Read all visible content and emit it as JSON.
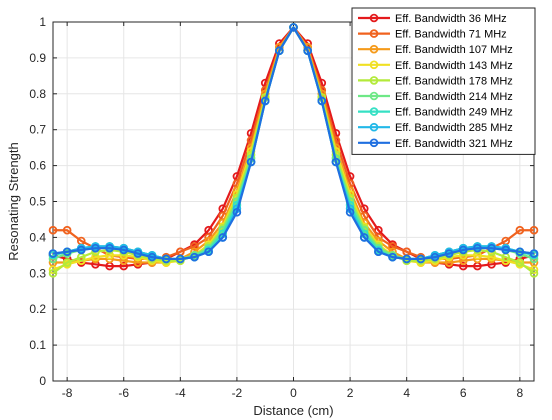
{
  "chart_data": {
    "type": "line",
    "xlabel": "Distance (cm)",
    "ylabel": "Resonating Strength",
    "xlim": [
      -8.5,
      8.5
    ],
    "ylim": [
      0,
      1
    ],
    "xticks": [
      -8,
      -6,
      -4,
      -2,
      0,
      2,
      4,
      6,
      8
    ],
    "yticks": [
      0,
      0.1,
      0.2,
      0.3,
      0.4,
      0.5,
      0.6,
      0.7,
      0.8,
      0.9,
      1
    ],
    "xtick_labels": [
      "-8",
      "-6",
      "-4",
      "-2",
      "0",
      "2",
      "4",
      "6",
      "8"
    ],
    "ytick_labels": [
      "0",
      "0.1",
      "0.2",
      "0.3",
      "0.4",
      "0.5",
      "0.6",
      "0.7",
      "0.8",
      "0.9",
      "1"
    ],
    "grid": true,
    "legend_position": "top-right",
    "x": [
      -8.5,
      -8,
      -7.5,
      -7,
      -6.5,
      -6,
      -5.5,
      -5,
      -4.5,
      -4,
      -3.5,
      -3,
      -2.5,
      -2,
      -1.5,
      -1,
      -0.5,
      0,
      0.5,
      1,
      1.5,
      2,
      2.5,
      3,
      3.5,
      4,
      4.5,
      5,
      5.5,
      6,
      6.5,
      7,
      7.5,
      8,
      8.5
    ],
    "series": [
      {
        "name": "Eff. Bandwidth 36 MHz",
        "color": "#e41a1c",
        "values": [
          0.35,
          0.34,
          0.33,
          0.325,
          0.32,
          0.32,
          0.325,
          0.33,
          0.34,
          0.36,
          0.38,
          0.42,
          0.48,
          0.57,
          0.69,
          0.83,
          0.94,
          0.985,
          0.94,
          0.83,
          0.69,
          0.57,
          0.48,
          0.42,
          0.38,
          0.36,
          0.34,
          0.33,
          0.325,
          0.32,
          0.32,
          0.325,
          0.33,
          0.34,
          0.35
        ]
      },
      {
        "name": "Eff. Bandwidth 71 MHz",
        "color": "#f0621e",
        "values": [
          0.42,
          0.42,
          0.39,
          0.37,
          0.35,
          0.345,
          0.34,
          0.34,
          0.345,
          0.36,
          0.375,
          0.4,
          0.46,
          0.55,
          0.67,
          0.81,
          0.93,
          0.985,
          0.93,
          0.81,
          0.67,
          0.55,
          0.46,
          0.4,
          0.375,
          0.36,
          0.345,
          0.34,
          0.34,
          0.345,
          0.35,
          0.37,
          0.39,
          0.42,
          0.42
        ]
      },
      {
        "name": "Eff. Bandwidth 107 MHz",
        "color": "#f59a1a",
        "values": [
          0.33,
          0.33,
          0.335,
          0.34,
          0.34,
          0.335,
          0.33,
          0.33,
          0.33,
          0.34,
          0.36,
          0.39,
          0.44,
          0.53,
          0.65,
          0.8,
          0.93,
          0.985,
          0.93,
          0.8,
          0.65,
          0.53,
          0.44,
          0.39,
          0.36,
          0.34,
          0.33,
          0.33,
          0.33,
          0.335,
          0.34,
          0.34,
          0.335,
          0.33,
          0.33
        ]
      },
      {
        "name": "Eff. Bandwidth 143 MHz",
        "color": "#f0e023",
        "values": [
          0.31,
          0.325,
          0.335,
          0.345,
          0.35,
          0.35,
          0.345,
          0.335,
          0.33,
          0.335,
          0.35,
          0.38,
          0.43,
          0.52,
          0.64,
          0.79,
          0.92,
          0.985,
          0.92,
          0.79,
          0.64,
          0.52,
          0.43,
          0.38,
          0.35,
          0.335,
          0.33,
          0.335,
          0.345,
          0.35,
          0.35,
          0.345,
          0.335,
          0.325,
          0.31
        ]
      },
      {
        "name": "Eff. Bandwidth 178 MHz",
        "color": "#b3ea3a",
        "values": [
          0.3,
          0.33,
          0.345,
          0.36,
          0.365,
          0.36,
          0.35,
          0.34,
          0.335,
          0.335,
          0.35,
          0.375,
          0.425,
          0.51,
          0.63,
          0.79,
          0.92,
          0.985,
          0.92,
          0.79,
          0.63,
          0.51,
          0.425,
          0.375,
          0.35,
          0.335,
          0.335,
          0.34,
          0.35,
          0.36,
          0.365,
          0.36,
          0.345,
          0.33,
          0.3
        ]
      },
      {
        "name": "Eff. Bandwidth 214 MHz",
        "color": "#6ee886",
        "values": [
          0.34,
          0.355,
          0.365,
          0.37,
          0.375,
          0.37,
          0.36,
          0.35,
          0.34,
          0.34,
          0.35,
          0.37,
          0.42,
          0.5,
          0.62,
          0.78,
          0.92,
          0.985,
          0.92,
          0.78,
          0.62,
          0.5,
          0.42,
          0.37,
          0.35,
          0.34,
          0.34,
          0.35,
          0.36,
          0.37,
          0.375,
          0.37,
          0.365,
          0.355,
          0.34
        ]
      },
      {
        "name": "Eff. Bandwidth 249 MHz",
        "color": "#35e0c4",
        "values": [
          0.35,
          0.36,
          0.37,
          0.375,
          0.375,
          0.37,
          0.36,
          0.35,
          0.34,
          0.34,
          0.345,
          0.365,
          0.41,
          0.49,
          0.61,
          0.78,
          0.92,
          0.985,
          0.92,
          0.78,
          0.61,
          0.49,
          0.41,
          0.365,
          0.345,
          0.34,
          0.34,
          0.35,
          0.36,
          0.37,
          0.375,
          0.375,
          0.37,
          0.36,
          0.35
        ]
      },
      {
        "name": "Eff. Bandwidth 285 MHz",
        "color": "#22b8e8",
        "values": [
          0.355,
          0.36,
          0.37,
          0.375,
          0.375,
          0.37,
          0.36,
          0.35,
          0.34,
          0.34,
          0.345,
          0.36,
          0.4,
          0.48,
          0.61,
          0.78,
          0.92,
          0.985,
          0.92,
          0.78,
          0.61,
          0.48,
          0.4,
          0.36,
          0.345,
          0.34,
          0.34,
          0.35,
          0.36,
          0.37,
          0.375,
          0.375,
          0.37,
          0.36,
          0.355
        ]
      },
      {
        "name": "Eff. Bandwidth 321 MHz",
        "color": "#1f6fe0",
        "values": [
          0.355,
          0.36,
          0.365,
          0.37,
          0.37,
          0.365,
          0.355,
          0.345,
          0.34,
          0.34,
          0.345,
          0.36,
          0.4,
          0.47,
          0.61,
          0.78,
          0.92,
          0.985,
          0.92,
          0.78,
          0.61,
          0.47,
          0.4,
          0.36,
          0.345,
          0.34,
          0.34,
          0.345,
          0.355,
          0.365,
          0.37,
          0.37,
          0.365,
          0.36,
          0.355
        ]
      }
    ]
  }
}
